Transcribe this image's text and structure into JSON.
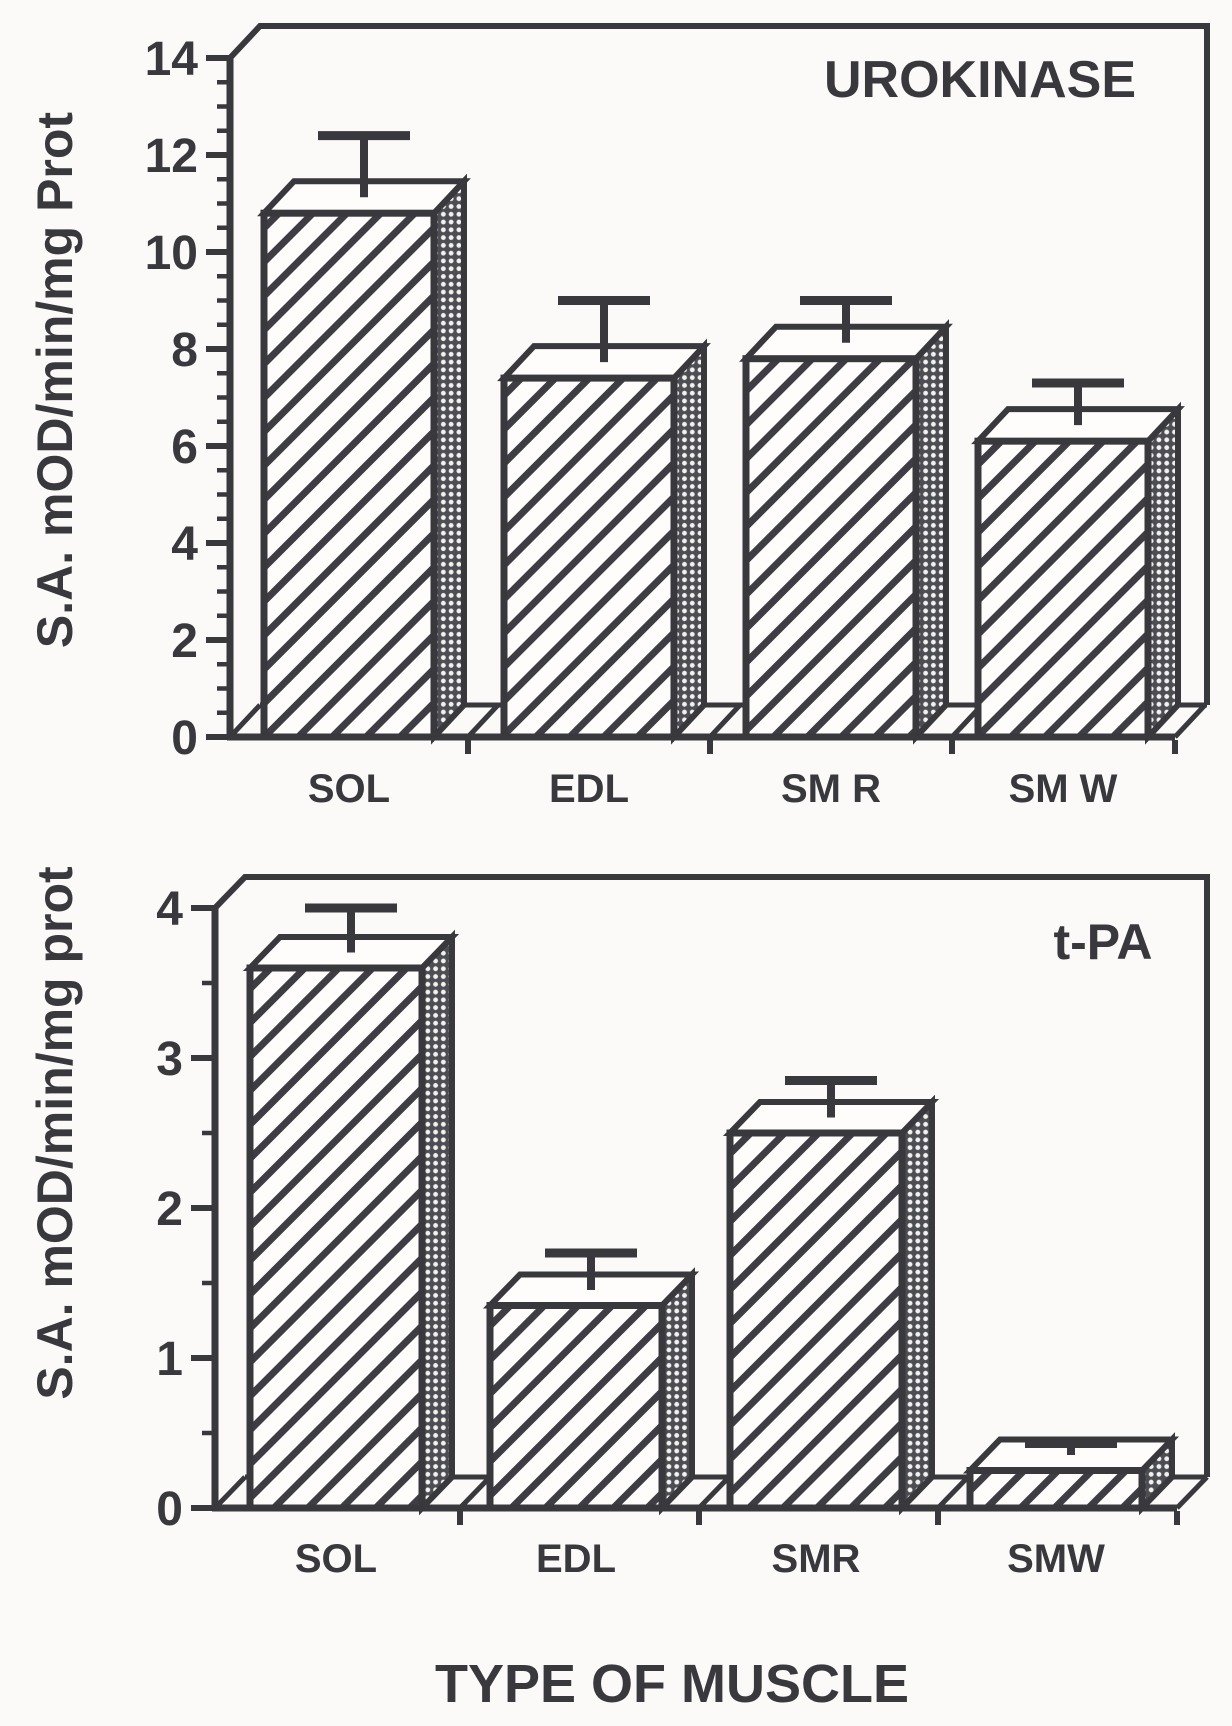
{
  "figure": {
    "xlabel": "TYPE OF MUSCLE",
    "colors": {
      "ink": "#38383d",
      "paper": "#fbfaf8",
      "bar_face": "#fefdfb",
      "hatch_line": "#3d3d43",
      "side_fill": "#4d4d54",
      "side_dot": "#f2f1ee"
    }
  },
  "chart_data": [
    {
      "type": "bar",
      "title": "UROKINASE",
      "ylabel": "S.A. mOD/min/mg Prot",
      "categories": [
        "SOL",
        "EDL",
        "SM R",
        "SM W"
      ],
      "values": [
        10.8,
        7.4,
        7.8,
        6.1
      ],
      "error_top": [
        12.4,
        9.0,
        9.0,
        7.3
      ],
      "ylim": [
        0,
        14
      ],
      "yticks": [
        0,
        2,
        4,
        6,
        8,
        10,
        12,
        14
      ],
      "ytick_step": 2,
      "yminor_step": 0.5,
      "grid": "off",
      "legend": "none",
      "style": "3d-bars-diagonal-hatch-with-error-bars"
    },
    {
      "type": "bar",
      "title": "t-PA",
      "ylabel": "S.A. mOD/min/mg prot",
      "categories": [
        "SOL",
        "EDL",
        "SMR",
        "SMW"
      ],
      "values": [
        3.6,
        1.35,
        2.5,
        0.25
      ],
      "error_top": [
        4.0,
        1.7,
        2.85,
        0.43
      ],
      "ylim": [
        0,
        4
      ],
      "yticks": [
        0,
        1,
        2,
        3,
        4
      ],
      "ytick_step": 1,
      "yminor_step": 0.5,
      "grid": "off",
      "legend": "none",
      "style": "3d-bars-diagonal-hatch-with-error-bars"
    }
  ]
}
